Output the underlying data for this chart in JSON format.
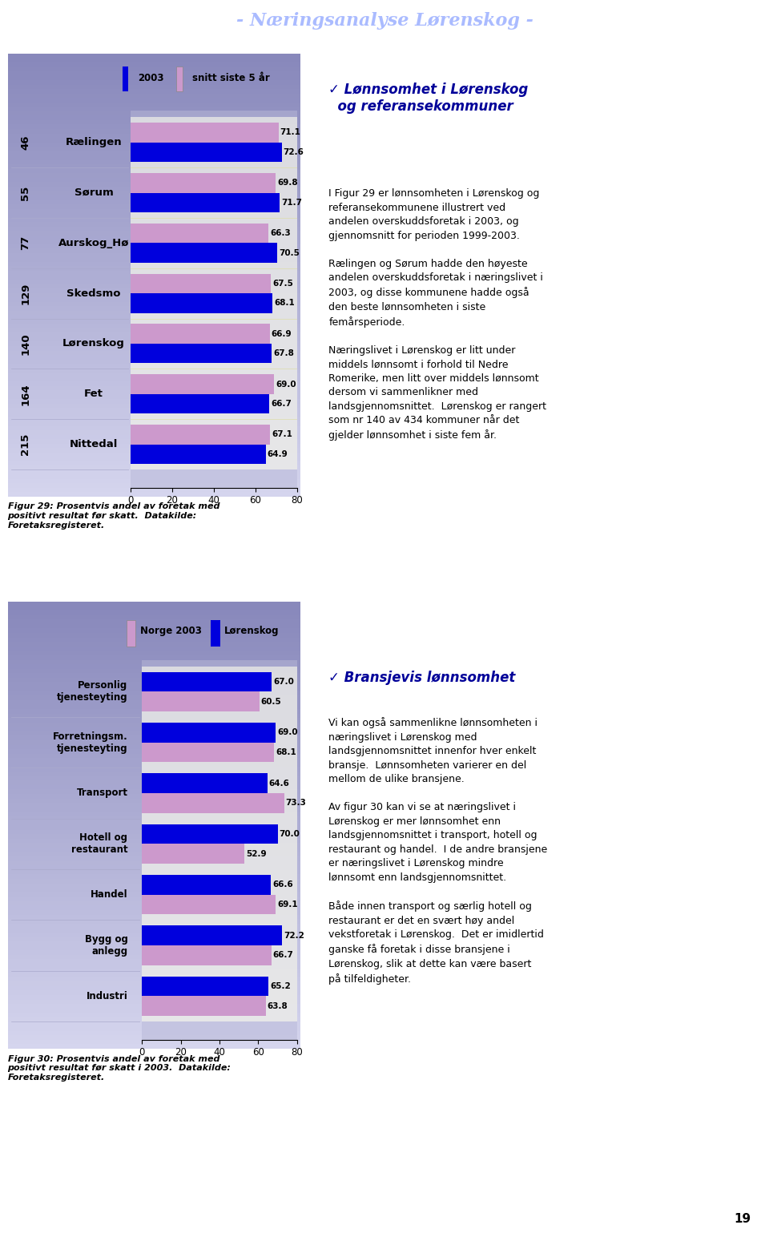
{
  "chart1": {
    "legend_labels": [
      "2003",
      "snitt siste 5 år"
    ],
    "categories": [
      "Rælingen",
      "Sørum",
      "Aurskog_Hø",
      "Skedsmo",
      "Lørenskog",
      "Fet",
      "Nittedal"
    ],
    "rank_labels": [
      "46",
      "55",
      "77",
      "129",
      "140",
      "164",
      "215"
    ],
    "values_2003": [
      72.6,
      71.7,
      70.5,
      68.1,
      67.8,
      66.7,
      64.9
    ],
    "values_snitt": [
      71.1,
      69.8,
      66.3,
      67.5,
      66.9,
      69.0,
      67.1
    ],
    "bar_color_2003": "#0000dd",
    "bar_color_snitt": "#cc99cc",
    "xlim": [
      0,
      80
    ],
    "xticks": [
      0,
      20,
      40,
      60,
      80
    ],
    "caption": "Figur 29: Prosentvis andel av foretak med\npositivt resultat før skatt.  Datakilde:\nForetaksregisteret."
  },
  "chart2": {
    "legend_labels": [
      "Norge 2003",
      "Lørenskog"
    ],
    "categories": [
      "Personlig\ntjenesteyting",
      "Forretningsm.\ntjenesteyting",
      "Transport",
      "Hotell og\nrestaurant",
      "Handel",
      "Bygg og\nanlegg",
      "Industri"
    ],
    "values_norge": [
      60.5,
      68.1,
      73.3,
      52.9,
      69.1,
      66.7,
      63.8
    ],
    "values_lorenskog": [
      67.0,
      69.0,
      64.6,
      70.0,
      66.6,
      72.2,
      65.2
    ],
    "bar_color_norge": "#cc99cc",
    "bar_color_lorenskog": "#0000dd",
    "xlim": [
      0,
      80
    ],
    "xticks": [
      0,
      20,
      40,
      60,
      80
    ],
    "caption": "Figur 30: Prosentvis andel av foretak med\npositivt resultat før skatt i 2003.  Datakilde:\nForetaksregisteret."
  },
  "header_text": "- Næringsanalyse Lørenskog -",
  "header_bg": "#0000aa",
  "header_text_color": "#aabbff",
  "right_title_color": "#000099",
  "page_bg": "#ffffff",
  "chart_border": "#0000cc",
  "page_number": "19",
  "panel1_bg_top": "#9999cc",
  "panel1_bg_bot": "#d0d0e8",
  "panel_bar_area_bg": "#c0c0d8",
  "row_stripe": "#ffffee"
}
